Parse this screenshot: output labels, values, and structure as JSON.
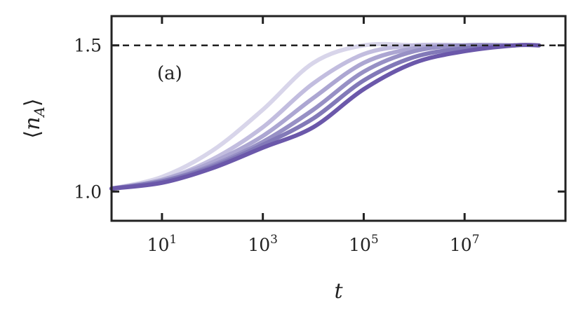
{
  "chart_data": {
    "type": "line",
    "xlabel": "t",
    "ylabel": "⟨n_A⟩",
    "annotation": "(a)",
    "x_scale": "log",
    "xlim": [
      1,
      1000000000.0
    ],
    "ylim": [
      0.9,
      1.6
    ],
    "x_ticks": [
      10,
      1000,
      100000,
      10000000
    ],
    "x_tick_labels": [
      {
        "base": "10",
        "exp": "1"
      },
      {
        "base": "10",
        "exp": "3"
      },
      {
        "base": "10",
        "exp": "5"
      },
      {
        "base": "10",
        "exp": "7"
      }
    ],
    "y_ticks": [
      1.0,
      1.5
    ],
    "y_tick_labels": [
      "1.0",
      "1.5"
    ],
    "grid": false,
    "reference_line": {
      "y": 1.5,
      "style": "dashed",
      "color": "#222222"
    },
    "series": [
      {
        "color": "#d8d5ea",
        "x": [
          1,
          10,
          100,
          1000,
          10000,
          100000,
          1000000
        ],
        "y": [
          1.01,
          1.05,
          1.14,
          1.28,
          1.44,
          1.5,
          1.5
        ]
      },
      {
        "color": "#c2bddf",
        "x": [
          1,
          10,
          100,
          1000,
          10000,
          100000,
          1000000,
          10000000
        ],
        "y": [
          1.01,
          1.04,
          1.11,
          1.22,
          1.37,
          1.47,
          1.5,
          1.5
        ]
      },
      {
        "color": "#aca6d2",
        "x": [
          1,
          10,
          100,
          1000,
          10000,
          100000,
          1000000,
          10000000
        ],
        "y": [
          1.01,
          1.04,
          1.1,
          1.19,
          1.32,
          1.44,
          1.49,
          1.5
        ]
      },
      {
        "color": "#9790c5",
        "x": [
          1,
          10,
          100,
          1000,
          10000,
          100000,
          1000000,
          10000000,
          100000000
        ],
        "y": [
          1.01,
          1.035,
          1.09,
          1.17,
          1.28,
          1.41,
          1.48,
          1.5,
          1.5
        ]
      },
      {
        "color": "#8279b8",
        "x": [
          1,
          10,
          100,
          1000,
          10000,
          100000,
          1000000,
          10000000,
          100000000
        ],
        "y": [
          1.01,
          1.035,
          1.085,
          1.16,
          1.25,
          1.38,
          1.46,
          1.49,
          1.5
        ]
      },
      {
        "color": "#6b58aa",
        "x": [
          1,
          10,
          100,
          1000,
          10000,
          100000,
          1000000,
          10000000,
          100000000,
          300000000
        ],
        "y": [
          1.01,
          1.03,
          1.08,
          1.15,
          1.22,
          1.35,
          1.44,
          1.48,
          1.5,
          1.5
        ]
      }
    ]
  }
}
